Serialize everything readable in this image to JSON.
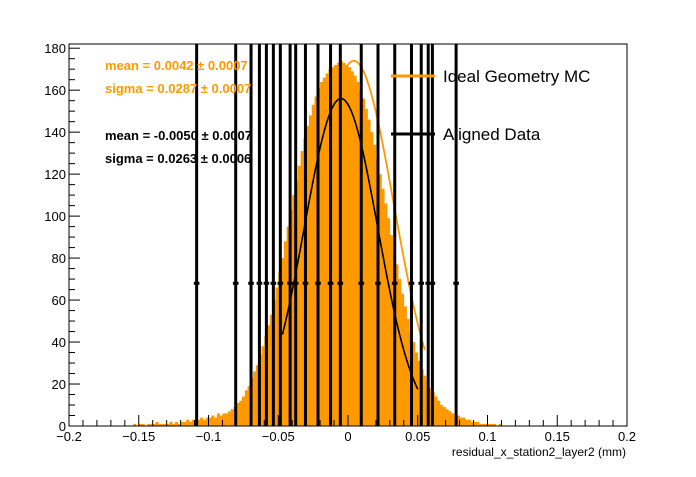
{
  "chart_data": {
    "type": "histogram",
    "xlabel": "residual_x_station2_layer2 (mm)",
    "ylabel": "",
    "xlim": [
      -0.2,
      0.2
    ],
    "ylim": [
      0,
      182
    ],
    "x_ticks": [
      "−0.2",
      "−0.15",
      "−0.1",
      "−0.05",
      "0",
      "0.05",
      "0.1",
      "0.15",
      "0.2"
    ],
    "y_ticks": [
      "0",
      "20",
      "40",
      "60",
      "80",
      "100",
      "120",
      "140",
      "160",
      "180"
    ],
    "series": [
      {
        "name": "Ideal Geometry MC",
        "color": "#ff9900",
        "kind": "filled-histogram",
        "bin_edges_range": [
          -0.2,
          0.2
        ],
        "bin_width": 0.002,
        "values": [
          0,
          0,
          0,
          0,
          0,
          0,
          0,
          0,
          0,
          0,
          0,
          0,
          0,
          0,
          0,
          0,
          0,
          0,
          0,
          0,
          0,
          0,
          0,
          1,
          0,
          1,
          1,
          0,
          1,
          1,
          1,
          2,
          1,
          1,
          1,
          1,
          2,
          1,
          2,
          1,
          2,
          2,
          3,
          2,
          3,
          2,
          3,
          4,
          3,
          4,
          4,
          5,
          4,
          6,
          5,
          6,
          6,
          7,
          8,
          9,
          11,
          12,
          14,
          17,
          19,
          23,
          26,
          29,
          34,
          38,
          43,
          48,
          53,
          60,
          66,
          73,
          80,
          88,
          95,
          103,
          110,
          117,
          124,
          131,
          137,
          143,
          148,
          153,
          157,
          161,
          164,
          166,
          168,
          170,
          171,
          172,
          173,
          174,
          173,
          172,
          171,
          169,
          167,
          164,
          160,
          156,
          151,
          146,
          140,
          134,
          127,
          120,
          113,
          106,
          99,
          91,
          84,
          77,
          70,
          63,
          57,
          51,
          45,
          40,
          35,
          31,
          27,
          24,
          21,
          18,
          16,
          14,
          12,
          10,
          9,
          8,
          7,
          6,
          5,
          5,
          4,
          4,
          3,
          3,
          2,
          2,
          2,
          1,
          1,
          1,
          1,
          1,
          1,
          0,
          1,
          0,
          0,
          0,
          0,
          0,
          0,
          0,
          0,
          0,
          0,
          0,
          0,
          0,
          0,
          0,
          0,
          0,
          0,
          0,
          0,
          0,
          0,
          0,
          0,
          0,
          0,
          0,
          0,
          0,
          0,
          0,
          0,
          0,
          0,
          0,
          0,
          0,
          0,
          0,
          0,
          0,
          0,
          0,
          0,
          0,
          0,
          0,
          0,
          0
        ]
      },
      {
        "name": "Aligned Data",
        "color": "#000000",
        "kind": "points-with-error-bars",
        "x": [
          -0.1085,
          -0.0805,
          -0.0695,
          -0.0635,
          -0.0585,
          -0.0535,
          -0.0485,
          -0.0415,
          -0.0375,
          -0.0305,
          -0.0215,
          -0.0125,
          -0.0055,
          0.0095,
          0.0215,
          0.0335,
          0.0455,
          0.0525,
          0.0575,
          0.0605,
          0.0775
        ],
        "y": [
          68,
          68,
          68,
          68,
          68,
          68,
          68,
          68,
          68,
          68,
          68,
          68,
          68,
          68,
          68,
          68,
          68,
          68,
          68,
          68,
          68
        ],
        "y_err": [
          300,
          300,
          300,
          300,
          300,
          300,
          300,
          300,
          300,
          300,
          300,
          300,
          300,
          300,
          300,
          300,
          300,
          300,
          300,
          300,
          300
        ],
        "x_err": 0.002
      }
    ],
    "fits": [
      {
        "series": "Ideal Geometry MC",
        "color": "#ff9900",
        "mean": 0.0042,
        "sigma": 0.0287,
        "amplitude": 174,
        "x_range": [
          -0.045,
          0.055
        ]
      },
      {
        "series": "Aligned Data",
        "color": "#000000",
        "mean": -0.005,
        "sigma": 0.0263,
        "amplitude": 156,
        "x_range": [
          -0.047,
          0.05
        ]
      }
    ],
    "stats": [
      {
        "mean_label": "mean = 0.0042",
        "mean_err": "± 0.0007",
        "sigma_label": "sigma = 0.0287",
        "sigma_err": "± 0.0007",
        "color": "#ff9900"
      },
      {
        "mean_label": "mean = -0.0050",
        "mean_err": "± 0.0007",
        "sigma_label": "sigma = 0.0263",
        "sigma_err": "± 0.0006",
        "color": "#000000"
      }
    ],
    "legend": {
      "position": "top-right",
      "entries": [
        {
          "label": "Ideal Geometry MC",
          "color": "#ff9900"
        },
        {
          "label": "Aligned Data",
          "color": "#000000"
        }
      ]
    },
    "grid": false
  }
}
